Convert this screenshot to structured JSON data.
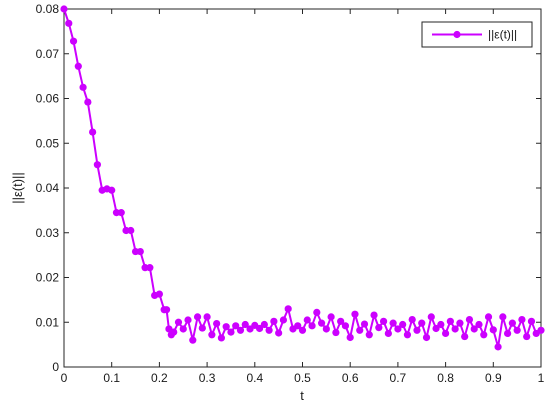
{
  "chart_data": {
    "type": "line",
    "xlabel": "t",
    "ylabel": "||ε(t)||",
    "xlim": [
      0,
      1
    ],
    "ylim": [
      0,
      0.08
    ],
    "x_ticks": [
      "0",
      "0.1",
      "0.2",
      "0.3",
      "0.4",
      "0.5",
      "0.6",
      "0.7",
      "0.8",
      "0.9",
      "1"
    ],
    "y_ticks": [
      "0",
      "0.01",
      "0.02",
      "0.03",
      "0.04",
      "0.05",
      "0.06",
      "0.07",
      "0.08"
    ],
    "grid": false,
    "legend_position": "top-right",
    "series": [
      {
        "name": "||ε(t)||",
        "color": "#cc00ff",
        "marker": "circle",
        "x": [
          0.0,
          0.01,
          0.02,
          0.03,
          0.04,
          0.05,
          0.06,
          0.07,
          0.08,
          0.09,
          0.1,
          0.11,
          0.12,
          0.13,
          0.14,
          0.15,
          0.16,
          0.17,
          0.18,
          0.19,
          0.2,
          0.21,
          0.215,
          0.22,
          0.225,
          0.23,
          0.24,
          0.25,
          0.26,
          0.27,
          0.28,
          0.29,
          0.3,
          0.31,
          0.32,
          0.33,
          0.34,
          0.35,
          0.36,
          0.37,
          0.38,
          0.39,
          0.4,
          0.41,
          0.42,
          0.43,
          0.44,
          0.45,
          0.46,
          0.47,
          0.48,
          0.49,
          0.5,
          0.51,
          0.52,
          0.53,
          0.54,
          0.55,
          0.56,
          0.57,
          0.58,
          0.59,
          0.6,
          0.61,
          0.62,
          0.63,
          0.64,
          0.65,
          0.66,
          0.67,
          0.68,
          0.69,
          0.7,
          0.71,
          0.72,
          0.73,
          0.74,
          0.75,
          0.76,
          0.77,
          0.78,
          0.79,
          0.8,
          0.81,
          0.82,
          0.83,
          0.84,
          0.85,
          0.86,
          0.87,
          0.88,
          0.89,
          0.9,
          0.91,
          0.92,
          0.93,
          0.94,
          0.95,
          0.96,
          0.97,
          0.98,
          0.99,
          1.0
        ],
        "y": [
          0.08,
          0.0768,
          0.0728,
          0.0672,
          0.0625,
          0.0592,
          0.0525,
          0.0452,
          0.0395,
          0.0398,
          0.0395,
          0.0345,
          0.0345,
          0.0305,
          0.0305,
          0.0258,
          0.0258,
          0.0222,
          0.0222,
          0.016,
          0.0163,
          0.0128,
          0.0128,
          0.0085,
          0.0072,
          0.0078,
          0.01,
          0.0085,
          0.0105,
          0.006,
          0.0112,
          0.0087,
          0.0112,
          0.0072,
          0.0097,
          0.0065,
          0.009,
          0.0078,
          0.0092,
          0.0082,
          0.0095,
          0.0085,
          0.0093,
          0.0086,
          0.0095,
          0.0082,
          0.0102,
          0.0076,
          0.0105,
          0.013,
          0.0085,
          0.0092,
          0.0082,
          0.0105,
          0.0092,
          0.0122,
          0.0098,
          0.0085,
          0.0112,
          0.0077,
          0.0102,
          0.0092,
          0.0066,
          0.0118,
          0.0082,
          0.0096,
          0.0072,
          0.0116,
          0.0088,
          0.0102,
          0.0075,
          0.0098,
          0.0085,
          0.0095,
          0.0072,
          0.0106,
          0.0082,
          0.0098,
          0.0066,
          0.0112,
          0.0086,
          0.0095,
          0.0075,
          0.0102,
          0.0085,
          0.0098,
          0.0068,
          0.0106,
          0.0085,
          0.0095,
          0.0072,
          0.0112,
          0.0083,
          0.0045,
          0.0112,
          0.0075,
          0.0098,
          0.0082,
          0.0106,
          0.0068,
          0.0102,
          0.0075,
          0.0082
        ]
      }
    ]
  }
}
